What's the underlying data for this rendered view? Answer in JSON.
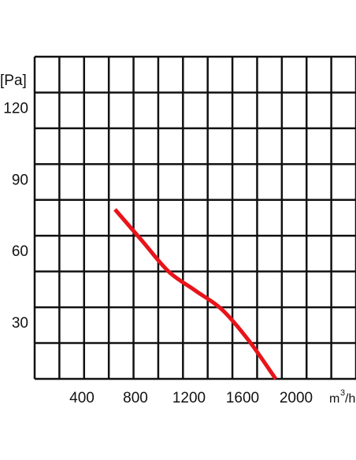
{
  "chart_data": {
    "type": "line",
    "xlabel": "",
    "ylabel": "",
    "y_unit": "[Pa]",
    "x_unit": {
      "base": "m",
      "sup": "3",
      "suffix": "/h"
    },
    "x_ticks": [
      "400",
      "800",
      "1200",
      "1600",
      "2000"
    ],
    "y_ticks": [
      "120",
      "90",
      "60",
      "30"
    ],
    "xlim": [
      0,
      2400
    ],
    "ylim": [
      0,
      135
    ],
    "grid": true,
    "curve_color": "#e8141a",
    "grid_color": "#111111",
    "series": [
      {
        "x": [
          600,
          800,
          1000,
          1200,
          1400,
          1600,
          1800
        ],
        "y": [
          71,
          58,
          45,
          37,
          29,
          16,
          0
        ]
      }
    ]
  }
}
